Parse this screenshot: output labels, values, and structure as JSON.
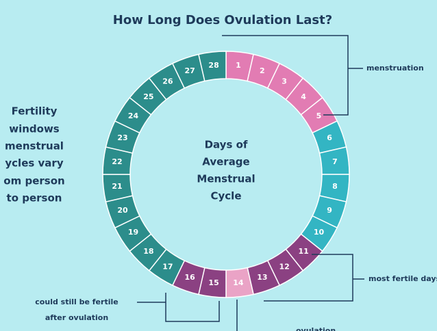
{
  "title": "How Long Does Ovulation Last?",
  "side_note": [
    "Fertility",
    "windows",
    "menstrual",
    "ycles vary",
    "om person",
    "to person"
  ],
  "center_label": [
    "Days of",
    "Average",
    "Menstrual",
    "Cycle"
  ],
  "days": [
    1,
    2,
    3,
    4,
    5,
    6,
    7,
    8,
    9,
    10,
    11,
    12,
    13,
    14,
    15,
    16,
    17,
    18,
    19,
    20,
    21,
    22,
    23,
    24,
    25,
    26,
    27,
    28
  ],
  "annotations": {
    "menstruation": "menstruation",
    "most_fertile": "most fertile days",
    "after_ovulation": [
      "could still be fertile",
      "after ovulation"
    ],
    "ovulation": "ovulation"
  }
}
